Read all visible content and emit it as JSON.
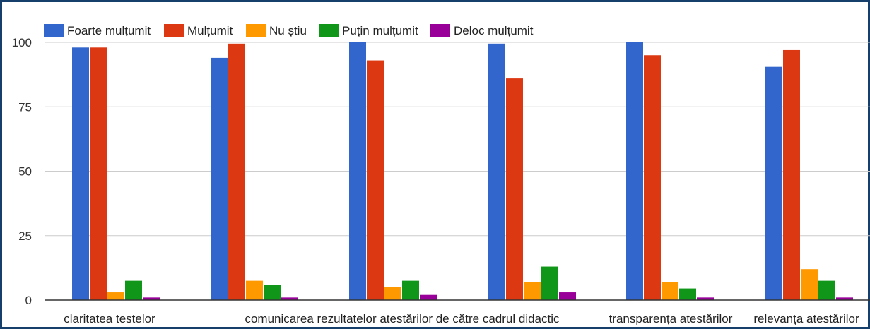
{
  "colors": {
    "Foarte mulțumit": "#3366cc",
    "Mulțumit": "#dc3912",
    "Nu știu": "#ff9900",
    "Puțin mulțumit": "#109618",
    "Deloc mulțumit": "#990099",
    "frame": "#173f6b",
    "grid": "#cccccc",
    "axis": "#333333"
  },
  "chart_data": {
    "type": "bar",
    "title": "",
    "xlabel": "",
    "ylabel": "",
    "ylim": [
      0,
      100
    ],
    "yticks": [
      0,
      25,
      50,
      75,
      100
    ],
    "grid": true,
    "legend_position": "top-left",
    "categories": [
      "claritatea testelor",
      "comunicarea rezultatelor atestărilor de către cadrul didactic",
      "",
      "",
      "transparența atestărilor",
      "relevanța atestărilor"
    ],
    "series": [
      {
        "name": "Foarte mulțumit",
        "values": [
          98,
          94,
          100,
          99.5,
          100,
          90.5
        ]
      },
      {
        "name": "Mulțumit",
        "values": [
          98,
          99.5,
          93,
          86,
          95,
          97
        ]
      },
      {
        "name": "Nu știu",
        "values": [
          3,
          7.5,
          5,
          7,
          7,
          12
        ]
      },
      {
        "name": "Puțin mulțumit",
        "values": [
          7.5,
          6,
          7.5,
          13,
          4.5,
          7.5
        ]
      },
      {
        "name": "Deloc mulțumit",
        "values": [
          1,
          1,
          2,
          3,
          1,
          1
        ]
      }
    ]
  }
}
